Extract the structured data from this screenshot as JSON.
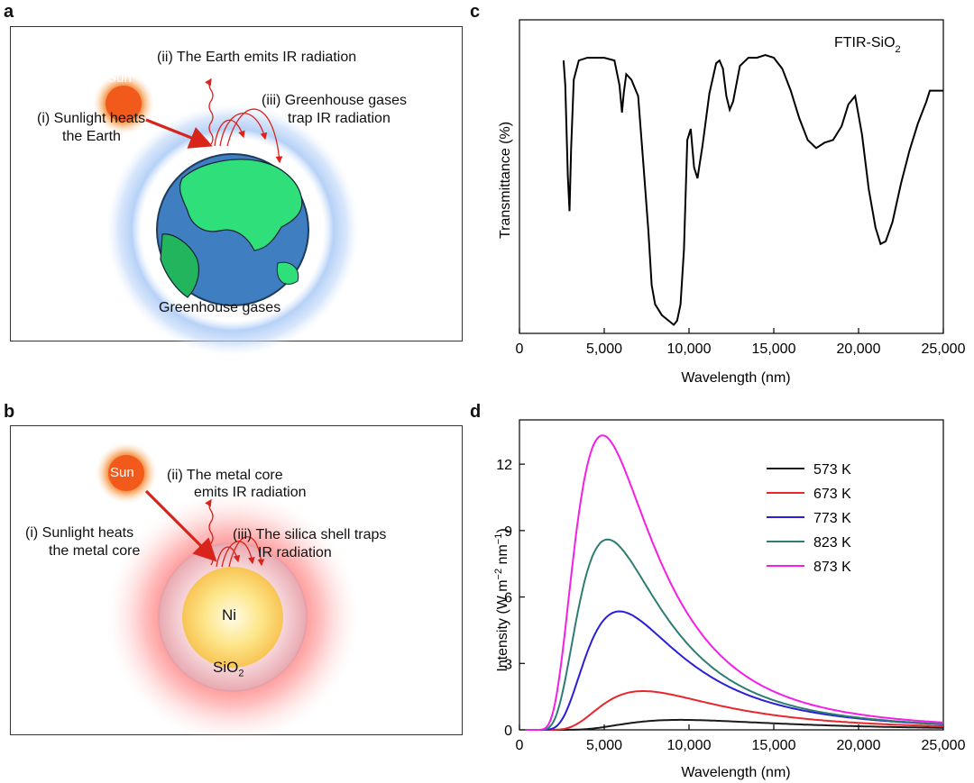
{
  "panels": {
    "a": {
      "letter": "a",
      "sun_label": "Sun",
      "step_ii": "(ii) The Earth emits IR radiation",
      "step_i_line1": "(i) Sunlight heats",
      "step_i_line2": "the Earth",
      "step_iii_line1": "(iii) Greenhouse gases",
      "step_iii_line2": "trap IR radiation",
      "caption": "Greenhouse gases"
    },
    "b": {
      "letter": "b",
      "sun_label": "Sun",
      "step_ii_line1": "(ii) The metal core",
      "step_ii_line2": "emits IR radiation",
      "step_i_line1": "(i)  Sunlight heats",
      "step_i_line2": "the metal core",
      "step_iii_line1": "(iii) The silica shell traps",
      "step_iii_line2": "IR radiation",
      "core_label": "Ni",
      "shell_label_main": "SiO",
      "shell_label_sub": "2"
    },
    "c": {
      "letter": "c"
    },
    "d": {
      "letter": "d"
    }
  },
  "chart_data": [
    {
      "type": "line",
      "panel": "c",
      "annotation_main": "FTIR-SiO",
      "annotation_sub": "2",
      "xlabel": "Wavelength (nm)",
      "ylabel": "Transmittance (%)",
      "xlim": [
        0,
        25000
      ],
      "ylim": [
        0,
        100
      ],
      "xticks": [
        0,
        5000,
        10000,
        15000,
        20000,
        25000
      ],
      "xtick_labels": [
        "0",
        "5,000",
        "10,000",
        "15,000",
        "20,000",
        "25,000"
      ],
      "yticks_shown": false,
      "series": [
        {
          "color": "#000000",
          "x": [
            2600,
            2700,
            2850,
            2950,
            3050,
            3200,
            3500,
            4000,
            5000,
            5600,
            5900,
            6050,
            6150,
            6300,
            6600,
            7000,
            7300,
            7600,
            7800,
            8000,
            8200,
            8400,
            8600,
            8800,
            9000,
            9100,
            9300,
            9500,
            9700,
            9900,
            10100,
            10300,
            10500,
            10800,
            11200,
            11600,
            11800,
            12000,
            12200,
            12400,
            12600,
            13000,
            13500,
            14000,
            14500,
            15000,
            15500,
            16000,
            16500,
            17000,
            17500,
            18000,
            18500,
            19000,
            19400,
            19800,
            20200,
            20600,
            21000,
            21300,
            21600,
            22000,
            22500,
            23000,
            23500,
            24000,
            24200,
            25000
          ],
          "y": [
            97,
            88,
            55,
            42,
            65,
            90,
            97,
            98,
            98,
            97,
            88,
            78,
            85,
            92,
            90,
            84,
            60,
            35,
            15,
            8,
            6,
            4,
            3,
            2,
            1,
            0.5,
            2,
            8,
            28,
            68,
            72,
            58,
            54,
            66,
            85,
            96,
            97,
            94,
            84,
            79,
            82,
            95,
            98,
            98,
            99,
            98,
            94,
            86,
            76,
            68,
            65,
            67,
            68,
            73,
            81,
            84,
            70,
            50,
            36,
            30,
            31,
            38,
            52,
            64,
            74,
            82,
            86,
            86
          ]
        }
      ]
    },
    {
      "type": "line",
      "panel": "d",
      "xlabel": "Wavelength (nm)",
      "ylabel_main": "Intensity (W m",
      "ylabel_sup1": "−2",
      "ylabel_mid": " nm",
      "ylabel_sup2": "−1",
      "ylabel_end": ")",
      "xlim": [
        0,
        25000
      ],
      "ylim": [
        0,
        14
      ],
      "xticks": [
        0,
        5000,
        10000,
        15000,
        20000,
        25000
      ],
      "xtick_labels": [
        "0",
        "5,000",
        "10,000",
        "15,000",
        "20,000",
        "25,000"
      ],
      "yticks": [
        0,
        3,
        6,
        9,
        12
      ],
      "ytick_labels": [
        "0",
        "3",
        "6",
        "9",
        "12"
      ],
      "legend": "top-right",
      "series": [
        {
          "name": "573 K",
          "color": "#1a1a1a",
          "peak_x": 9500,
          "peak_y": 0.45
        },
        {
          "name": "673 K",
          "color": "#e8262b",
          "peak_x": 7300,
          "peak_y": 1.75
        },
        {
          "name": "773 K",
          "color": "#2b1fd6",
          "peak_x": 5900,
          "peak_y": 5.35
        },
        {
          "name": "823 K",
          "color": "#2e7d73",
          "peak_x": 5200,
          "peak_y": 8.6
        },
        {
          "name": "873 K",
          "color": "#f51ee6",
          "peak_x": 4900,
          "peak_y": 13.3
        }
      ]
    }
  ]
}
